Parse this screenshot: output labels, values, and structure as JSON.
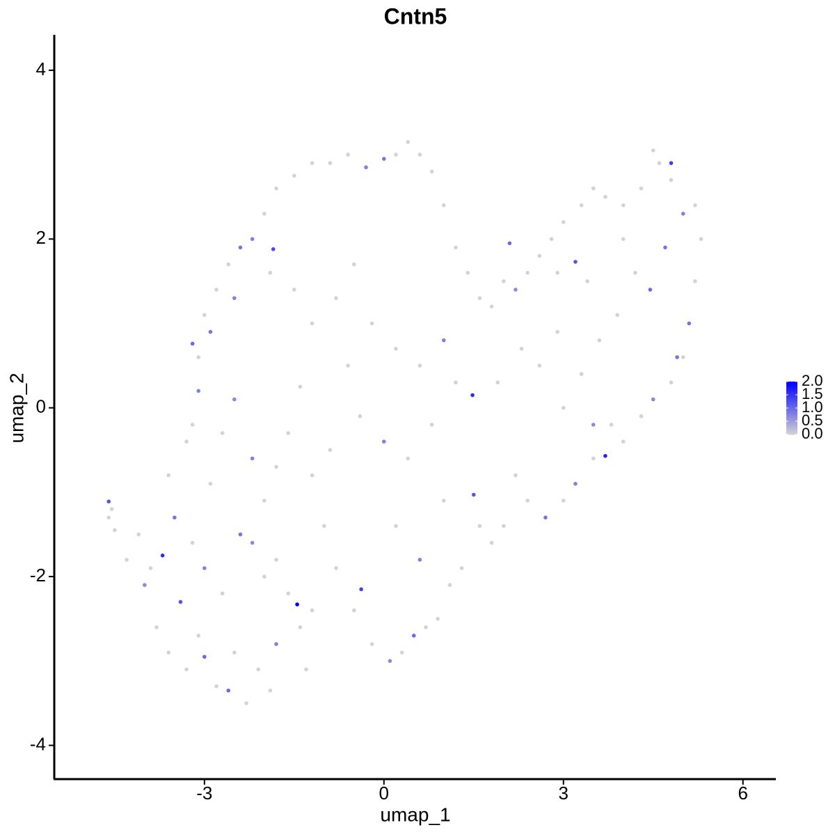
{
  "chart_data": {
    "type": "scatter",
    "title": "Cntn5",
    "xlabel": "umap_1",
    "ylabel": "umap_2",
    "xlim": [
      -5.51,
      6.55
    ],
    "ylim": [
      -4.4,
      4.42
    ],
    "xticks": [
      -3,
      0,
      3,
      6
    ],
    "yticks": [
      -4,
      -2,
      0,
      2,
      4
    ],
    "color_low": "#d3d3d3",
    "color_high": "#0000ff",
    "clim": [
      0,
      2
    ],
    "cticks": [
      {
        "value": 0,
        "label": "0.0"
      },
      {
        "value": 0.5,
        "label": "0.5"
      },
      {
        "value": 1,
        "label": "1.0"
      },
      {
        "value": 1.5,
        "label": "1.5"
      },
      {
        "value": 2,
        "label": "2.0"
      }
    ],
    "x": [
      -4.6,
      -3.7,
      -1.45,
      1.48,
      3.7,
      -0.38,
      4.8,
      -1.85,
      2.1,
      3.2,
      4.45,
      4.9,
      -4.6,
      -4.55,
      -4.5,
      -4.3,
      -4.1,
      -4.0,
      -3.9,
      -3.8,
      -3.6,
      -3.4,
      -3.3,
      -3.1,
      -3.0,
      -2.8,
      -2.6,
      -2.5,
      -2.3,
      -2.1,
      -1.9,
      -1.8,
      -3.5,
      -3.2,
      -3.0,
      -2.7,
      -2.4,
      -2.2,
      -2.0,
      -1.8,
      -1.6,
      -1.4,
      -1.2,
      -1.3,
      -3.6,
      -3.3,
      -3.1,
      -3.2,
      -2.9,
      -2.7,
      -2.5,
      -2.2,
      -2.0,
      -1.8,
      -1.6,
      -1.4,
      -1.2,
      -1.0,
      -0.8,
      -0.5,
      -0.2,
      0.1,
      0.3,
      0.5,
      0.7,
      0.9,
      1.1,
      1.3,
      1.6,
      1.5,
      1.8,
      2.0,
      2.2,
      2.4,
      2.7,
      3.0,
      3.2,
      3.5,
      3.8,
      4.0,
      4.3,
      4.5,
      4.8,
      5.0,
      5.1,
      5.2,
      5.3,
      5.2,
      5.0,
      4.8,
      4.6,
      4.5,
      4.3,
      4.0,
      3.7,
      3.5,
      3.3,
      3.0,
      2.8,
      2.6,
      2.4,
      2.2,
      2.0,
      1.8,
      1.6,
      1.4,
      1.2,
      1.0,
      0.8,
      0.6,
      0.4,
      0.2,
      0.0,
      -0.3,
      -0.6,
      -0.9,
      -1.2,
      -1.5,
      -1.8,
      -2.0,
      -2.2,
      -2.4,
      -2.6,
      -2.8,
      -3.0,
      -3.1,
      -2.9,
      -3.2,
      -2.5,
      -1.9,
      -1.5,
      -1.2,
      -0.8,
      -0.5,
      -0.2,
      0.2,
      0.6,
      1.0,
      1.2,
      0.8,
      0.4,
      0.0,
      -0.4,
      -0.6,
      -0.9,
      0.2,
      0.6,
      1.0,
      1.9,
      2.3,
      2.6,
      2.9,
      3.3,
      3.6,
      3.9,
      4.2,
      4.0,
      3.4,
      2.9,
      4.7,
      3.0,
      3.5
    ],
    "y": [
      -1.11,
      -1.75,
      -2.33,
      0.15,
      -0.57,
      -2.15,
      2.9,
      1.88,
      1.95,
      1.73,
      1.4,
      0.6,
      -1.3,
      -1.2,
      -1.45,
      -1.8,
      -1.5,
      -2.1,
      -1.9,
      -2.6,
      -2.9,
      -2.3,
      -3.1,
      -2.7,
      -2.95,
      -3.3,
      -3.35,
      -2.9,
      -3.5,
      -3.1,
      -3.35,
      -2.8,
      -1.3,
      -1.6,
      -1.9,
      -2.2,
      -1.5,
      -1.6,
      -2.0,
      -1.8,
      -2.2,
      -2.6,
      -2.4,
      -3.1,
      -0.8,
      -0.4,
      0.2,
      -0.2,
      -0.9,
      -0.3,
      0.1,
      -0.6,
      -1.1,
      -0.7,
      -0.3,
      0.25,
      -0.8,
      -1.4,
      -1.9,
      -2.4,
      -2.8,
      -3.0,
      -2.9,
      -2.7,
      -2.6,
      -2.5,
      -2.1,
      -1.9,
      -1.4,
      -1.03,
      -1.6,
      -1.4,
      -0.8,
      -1.1,
      -1.3,
      -1.1,
      -0.9,
      -0.6,
      -0.2,
      -0.4,
      -0.1,
      0.1,
      0.3,
      0.6,
      1.0,
      1.5,
      2.0,
      2.4,
      2.3,
      2.7,
      2.9,
      3.05,
      2.6,
      2.4,
      2.5,
      2.6,
      2.4,
      2.2,
      2.0,
      1.8,
      1.6,
      1.4,
      1.5,
      1.2,
      1.3,
      1.6,
      1.9,
      2.4,
      2.8,
      3.0,
      3.15,
      3.0,
      2.95,
      2.85,
      3.0,
      2.9,
      2.9,
      2.75,
      2.6,
      2.3,
      2.0,
      1.9,
      1.7,
      1.4,
      1.1,
      0.6,
      0.9,
      0.76,
      1.3,
      1.6,
      1.4,
      1.0,
      1.3,
      1.7,
      1.0,
      0.7,
      0.5,
      0.8,
      0.3,
      -0.2,
      -0.6,
      -0.4,
      -0.1,
      0.5,
      -0.5,
      -1.4,
      -1.8,
      -1.1,
      0.3,
      0.7,
      0.5,
      0.9,
      0.4,
      0.8,
      1.1,
      1.6,
      2.0,
      1.5,
      1.6,
      1.9,
      0.0,
      -0.2
    ],
    "values": [
      1.2,
      1.6,
      2.0,
      1.6,
      1.7,
      1.4,
      1.4,
      1.3,
      1.0,
      1.2,
      1.0,
      0.9,
      0,
      0,
      0,
      0,
      0,
      0.7,
      0,
      0,
      0,
      1.2,
      0,
      0,
      1.0,
      0,
      1.0,
      0,
      0,
      0,
      0,
      0.8,
      0.9,
      0,
      0.8,
      0,
      0.9,
      0.7,
      0,
      0,
      0,
      0,
      0,
      0,
      0,
      0,
      0.8,
      0,
      0,
      0,
      0.7,
      0.8,
      0,
      0,
      0,
      0,
      0,
      0,
      0,
      0,
      0,
      0.7,
      0,
      1.0,
      0,
      0,
      0,
      0,
      0,
      1.2,
      0,
      0,
      0,
      0,
      0.9,
      0,
      0.8,
      0,
      0,
      0,
      0,
      0.7,
      0,
      0,
      0.9,
      0,
      0,
      0,
      0.8,
      0,
      0,
      0,
      0,
      0,
      0,
      0,
      0,
      0,
      0,
      0,
      0,
      0.7,
      0,
      0,
      0,
      0,
      0,
      0,
      0,
      0,
      0,
      0,
      0.9,
      0.8,
      0,
      0,
      0,
      0,
      0,
      0,
      0.8,
      0.9,
      0,
      0,
      0,
      0,
      0.9,
      1.0,
      0.8,
      0,
      0,
      0,
      0,
      0,
      0,
      0,
      0,
      0.8,
      0,
      0,
      0,
      0.8,
      0,
      0,
      0,
      0,
      0.8,
      0,
      0,
      0,
      0,
      0,
      0,
      0,
      0,
      0,
      0,
      0,
      0,
      0.9,
      0,
      0.7
    ]
  }
}
